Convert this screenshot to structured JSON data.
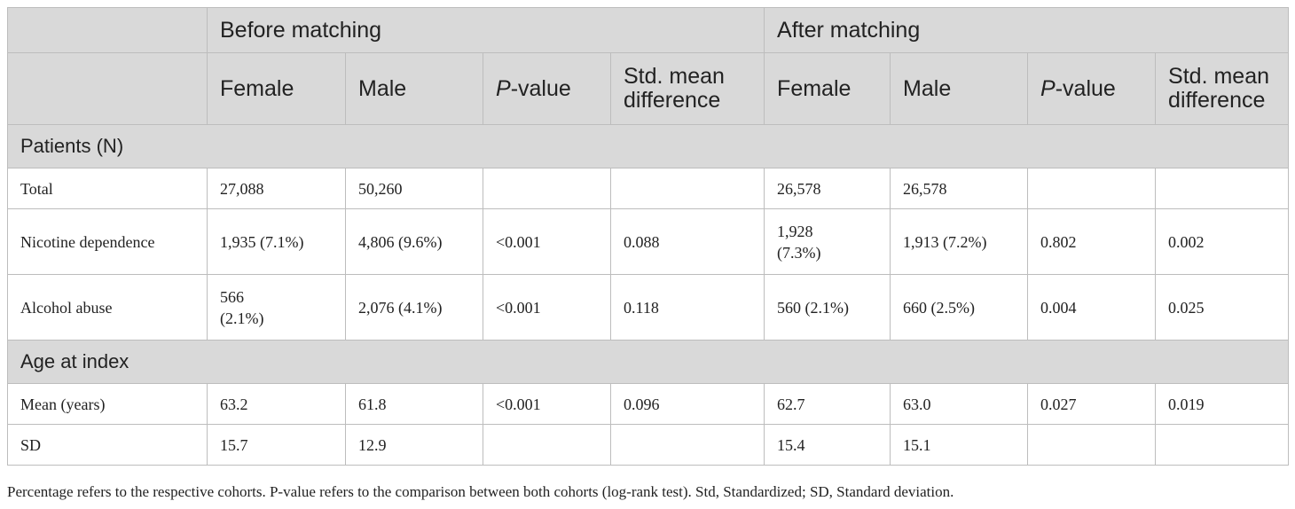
{
  "header": {
    "groups": [
      "Before matching",
      "After matching"
    ],
    "columns": [
      {
        "label": "Female"
      },
      {
        "label": "Male"
      },
      {
        "italic": "P",
        "label": "-value"
      },
      {
        "label": "Std. mean difference"
      },
      {
        "label": "Female"
      },
      {
        "label": "Male"
      },
      {
        "italic": "P",
        "label": "-value"
      },
      {
        "label": "Std. mean difference"
      }
    ]
  },
  "sections": [
    {
      "title": "Patients (N)",
      "rows": [
        {
          "label": "Total",
          "cells": [
            "27,088",
            "50,260",
            "",
            "",
            "26,578",
            "26,578",
            "",
            ""
          ]
        },
        {
          "label": "Nicotine dependence",
          "cells": [
            "1,935 (7.1%)",
            "4,806 (9.6%)",
            "<0.001",
            "0.088",
            "1,928 (7.3%)",
            "1,913 (7.2%)",
            "0.802",
            "0.002"
          ]
        },
        {
          "label": "Alcohol abuse",
          "cells": [
            "566 (2.1%)",
            "2,076 (4.1%)",
            "<0.001",
            "0.118",
            "560 (2.1%)",
            "660 (2.5%)",
            "0.004",
            "0.025"
          ]
        }
      ]
    },
    {
      "title": "Age at index",
      "rows": [
        {
          "label": "Mean (years)",
          "cells": [
            "63.2",
            "61.8",
            "<0.001",
            "0.096",
            "62.7",
            "63.0",
            "0.027",
            "0.019"
          ]
        },
        {
          "label": "SD",
          "cells": [
            "15.7",
            "12.9",
            "",
            "",
            "15.4",
            "15.1",
            "",
            ""
          ]
        }
      ]
    }
  ],
  "footnote": "Percentage refers to the respective cohorts. P-value refers to the comparison between both cohorts (log-rank test). Std, Standardized; SD, Standard deviation."
}
